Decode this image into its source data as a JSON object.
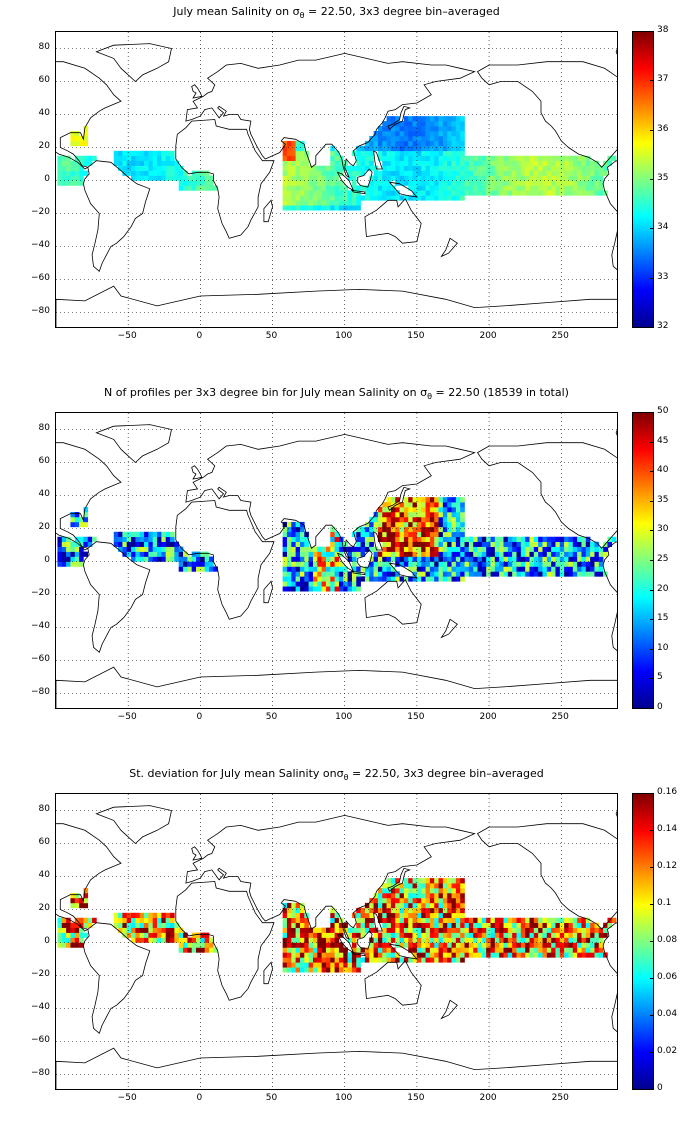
{
  "panels": [
    {
      "id": "salinity",
      "title_prefix": "July mean Salinity on ",
      "title_suffix": " = 22.50, 3x3 degree bin–averaged",
      "colorbar": {
        "min": 32,
        "max": 38,
        "ticks": [
          "38",
          "37",
          "36",
          "35",
          "34",
          "33",
          "32"
        ]
      }
    },
    {
      "id": "count",
      "title_prefix": "N of profiles per 3x3 degree bin for July mean Salinity on ",
      "title_suffix": " = 22.50 (18539 in total)",
      "colorbar": {
        "min": 0,
        "max": 50,
        "ticks": [
          "50",
          "45",
          "40",
          "35",
          "30",
          "25",
          "20",
          "15",
          "10",
          "5",
          "0"
        ]
      }
    },
    {
      "id": "stdev",
      "title_prefix": "St. deviation for July mean Salinity on",
      "title_suffix": " = 22.50, 3x3 degree bin–averaged",
      "colorbar": {
        "min": 0,
        "max": 0.16,
        "ticks": [
          "0.16",
          "0.14",
          "0.12",
          "0.1",
          "0.08",
          "0.06",
          "0.04",
          "0.02",
          "0"
        ]
      }
    }
  ],
  "sigma_symbol": "σ",
  "sigma_sub": "θ",
  "y_ticks": [
    "80",
    "60",
    "40",
    "20",
    "0",
    "−20",
    "−40",
    "−60",
    "−80"
  ],
  "x_ticks": [
    "−50",
    "0",
    "50",
    "100",
    "150",
    "200",
    "250"
  ],
  "map_extent": {
    "lon_min": -100,
    "lon_max": 290,
    "lat_min": -90,
    "lat_max": 90
  }
}
